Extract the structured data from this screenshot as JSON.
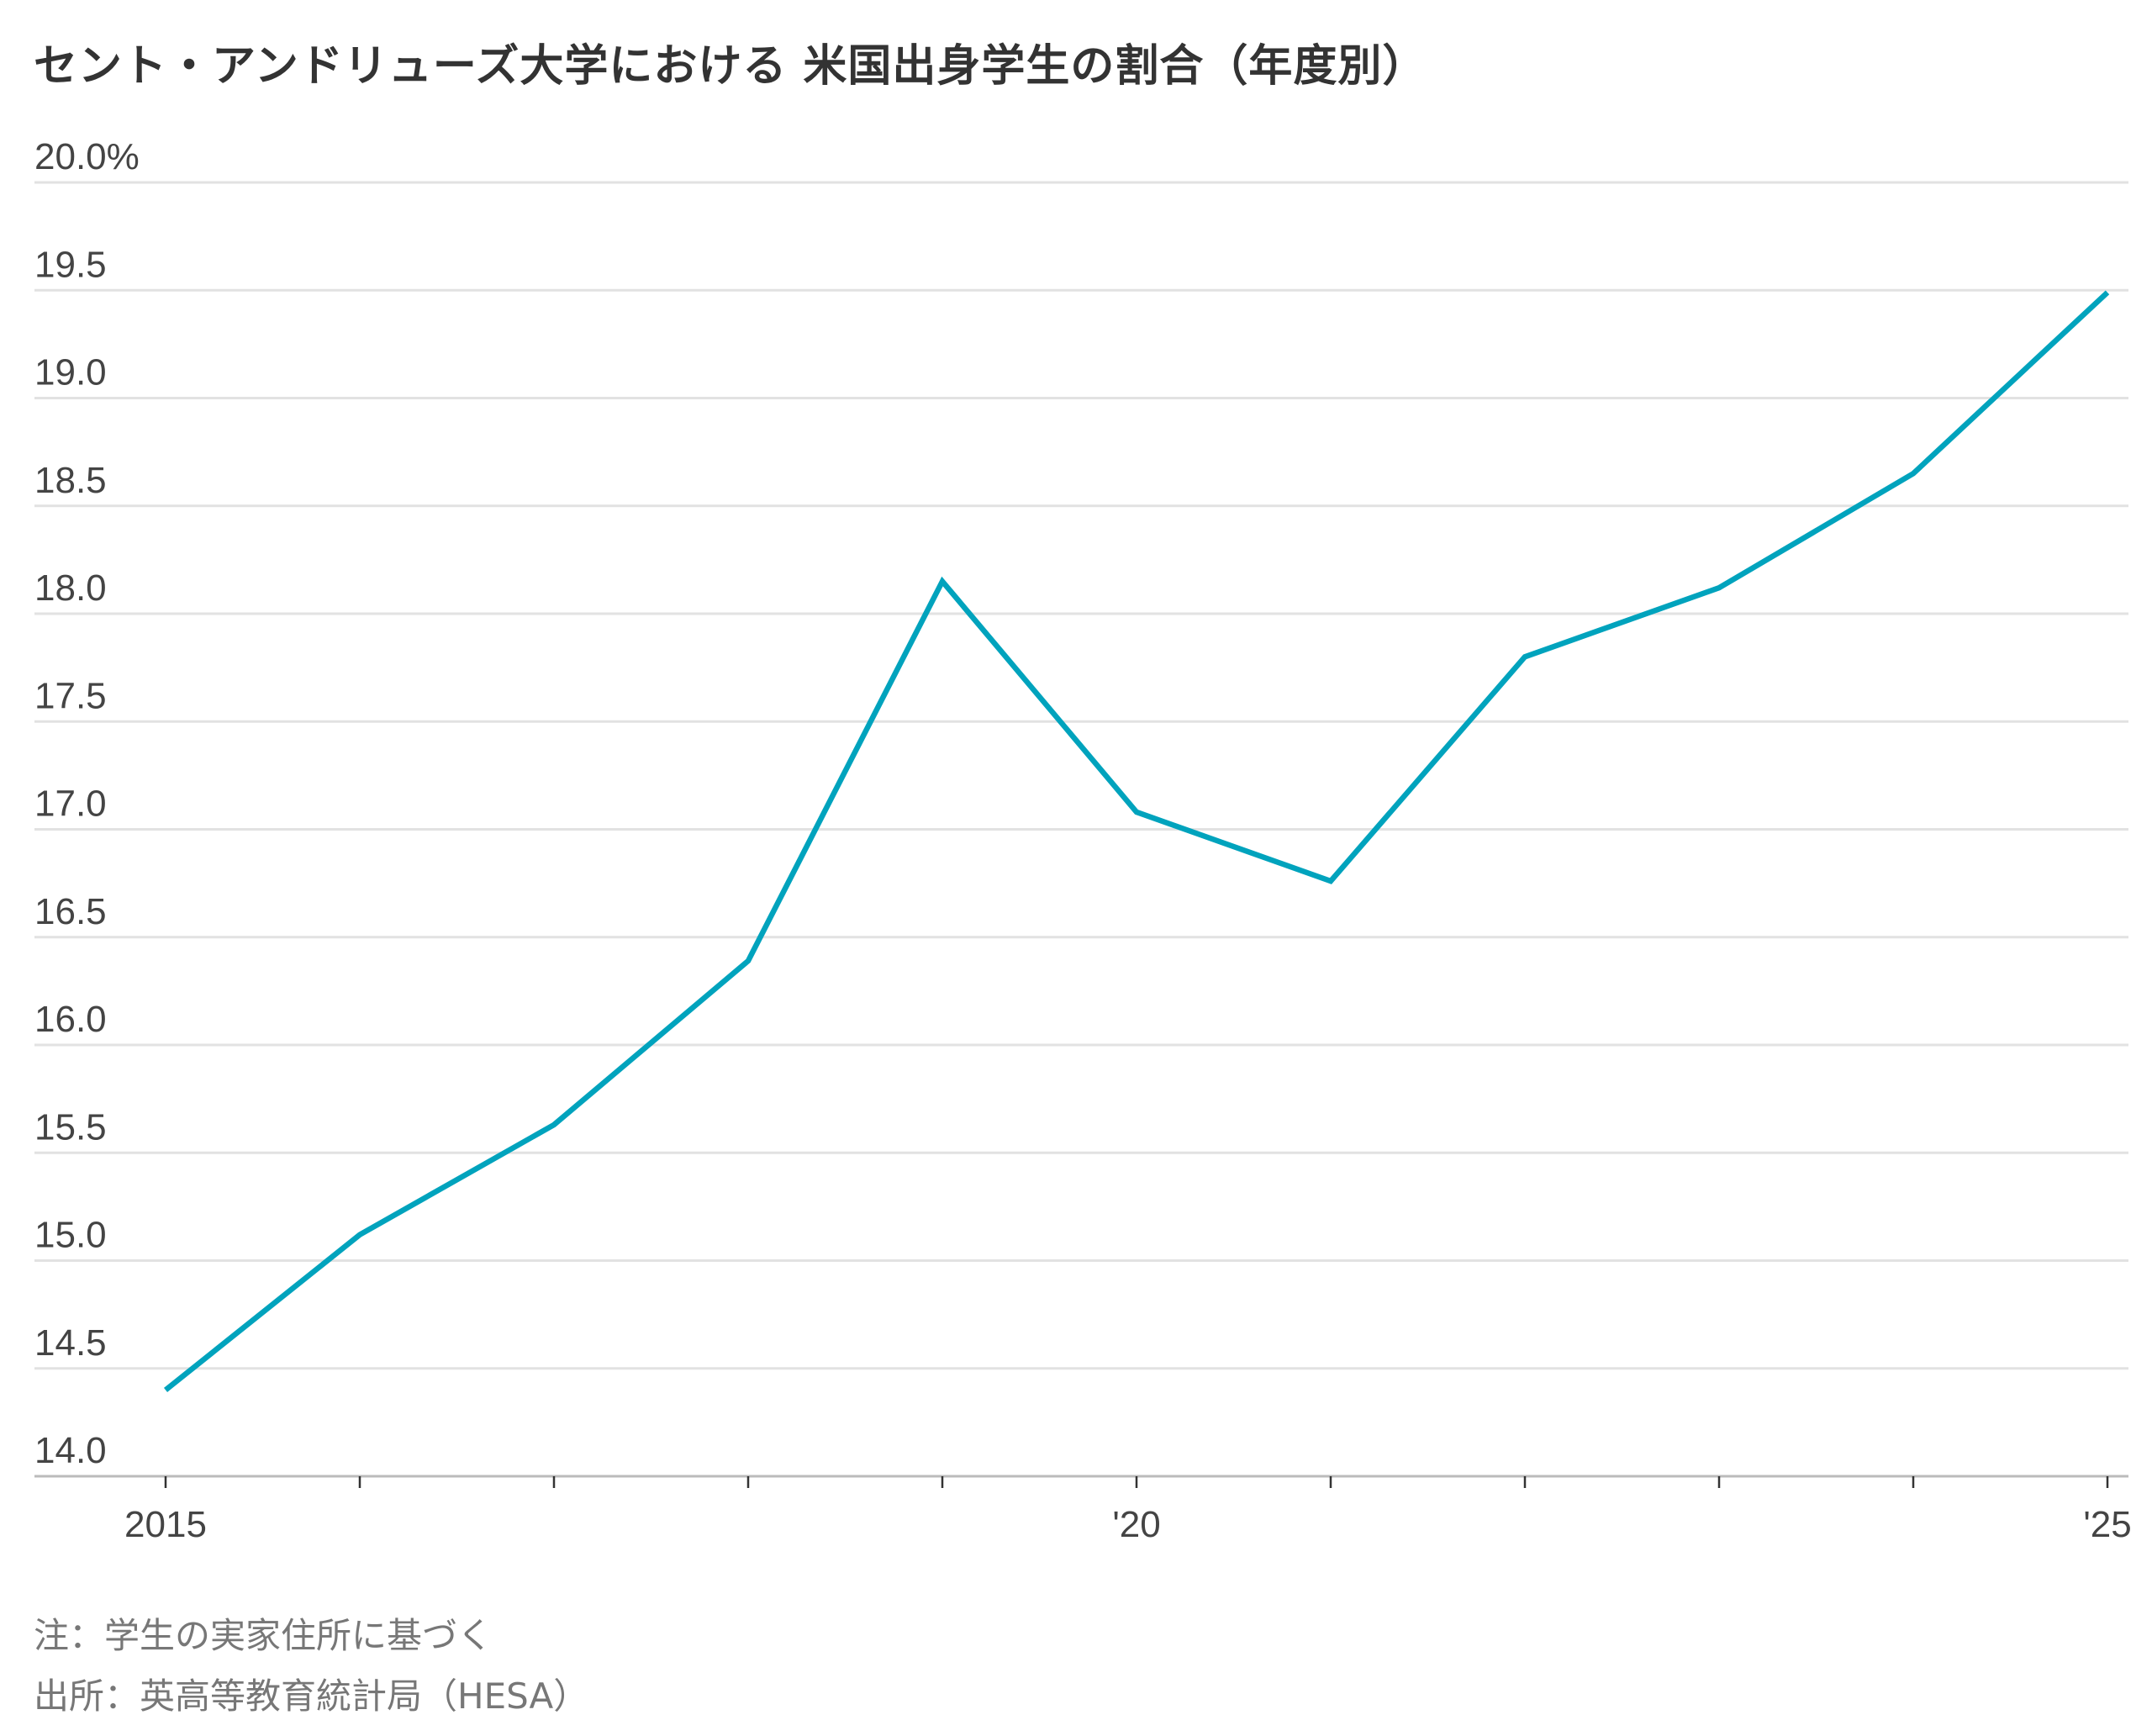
{
  "chart_data": {
    "type": "line",
    "title": "セント・アンドリューズ大学における 米国出身学生の割合（年度別）",
    "xlabel": "",
    "ylabel": "",
    "x": [
      2015,
      2016,
      2017,
      2018,
      2019,
      2020,
      2021,
      2022,
      2023,
      2024,
      2025
    ],
    "x_tick_labels": [
      {
        "x": 2015,
        "label": "2015"
      },
      {
        "x": 2020,
        "label": "'20"
      },
      {
        "x": 2025,
        "label": "'25"
      }
    ],
    "y_tick_labels": [
      "20.0%",
      "19.5",
      "19.0",
      "18.5",
      "18.0",
      "17.5",
      "17.0",
      "16.5",
      "16.0",
      "15.5",
      "15.0",
      "14.5",
      "14.0"
    ],
    "y_ticks": [
      20.0,
      19.5,
      19.0,
      18.5,
      18.0,
      17.5,
      17.0,
      16.5,
      16.0,
      15.5,
      15.0,
      14.5,
      14.0
    ],
    "ylim": [
      14.0,
      20.0
    ],
    "xlim": [
      2015,
      2025
    ],
    "grid": true,
    "series": [
      {
        "name": "米国出身学生の割合",
        "color": "#00a3bd",
        "values": [
          14.4,
          15.12,
          15.63,
          16.39,
          18.15,
          17.08,
          16.76,
          17.8,
          18.12,
          18.65,
          19.49
        ]
      }
    ]
  },
  "footer": {
    "note": "注：学生の実家住所に基づく",
    "source": "出所：英高等教育統計局（HESA）"
  }
}
